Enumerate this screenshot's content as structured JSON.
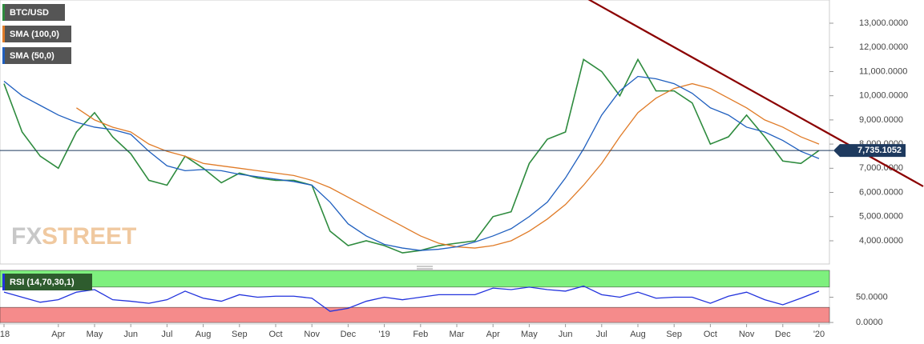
{
  "chart_data": [
    {
      "type": "line",
      "categories": [
        "'18",
        null,
        null,
        "Apr",
        null,
        "May",
        null,
        "Jun",
        null,
        "Jul",
        null,
        "Aug",
        null,
        "Sep",
        null,
        "Oct",
        null,
        "Nov",
        null,
        "Dec",
        null,
        "'19",
        null,
        "Feb",
        null,
        "Mar",
        null,
        "Apr",
        null,
        "May",
        null,
        "Jun",
        null,
        "Jul",
        null,
        "Aug",
        null,
        "Sep",
        null,
        "Oct",
        null,
        "Nov",
        null,
        "Dec",
        null,
        "'20"
      ],
      "series": [
        {
          "name": "BTC/USD",
          "color": "#2e8b3e",
          "values": [
            10500,
            8500,
            7500,
            7000,
            8500,
            9300,
            8300,
            7600,
            6500,
            6300,
            7500,
            7000,
            6400,
            6800,
            6600,
            6500,
            6500,
            6300,
            4400,
            3800,
            4000,
            3800,
            3500,
            3600,
            3800,
            3900,
            4000,
            5000,
            5200,
            7200,
            8200,
            8500,
            11500,
            11000,
            10000,
            11500,
            10200,
            10200,
            9700,
            8000,
            8300,
            9200,
            8300,
            7300,
            7200,
            7735.1052
          ]
        },
        {
          "name": "SMA (100,0)",
          "color": "#e07b27",
          "values": [
            null,
            null,
            null,
            null,
            9500,
            9000,
            8700,
            8500,
            8000,
            7700,
            7500,
            7200,
            7100,
            7000,
            6900,
            6800,
            6700,
            6500,
            6200,
            5800,
            5400,
            5000,
            4600,
            4200,
            3900,
            3750,
            3700,
            3800,
            4000,
            4400,
            4900,
            5500,
            6300,
            7200,
            8300,
            9300,
            9900,
            10300,
            10500,
            10300,
            9900,
            9500,
            9000,
            8700,
            8300,
            8000
          ]
        },
        {
          "name": "SMA (50,0)",
          "color": "#1f5fbf",
          "values": [
            10600,
            10000,
            9600,
            9200,
            8900,
            8700,
            8600,
            8400,
            7700,
            7100,
            6900,
            6950,
            6900,
            6750,
            6650,
            6550,
            6450,
            6300,
            5600,
            4700,
            4200,
            3850,
            3700,
            3600,
            3650,
            3750,
            3950,
            4200,
            4500,
            5000,
            5600,
            6600,
            7800,
            9200,
            10200,
            10800,
            10700,
            10500,
            10100,
            9500,
            9200,
            8700,
            8500,
            8150,
            7700,
            7400
          ]
        }
      ],
      "last_price": {
        "value": 7735.1052,
        "label": "7,735.1052"
      },
      "trendline": {
        "color": "#8b0000",
        "x": [
          32,
          45
        ],
        "values": [
          14100,
          8660
        ]
      },
      "ylim": [
        3040,
        13960
      ],
      "yticks": [
        {
          "value": 4000,
          "label": "4,000.0000"
        },
        {
          "value": 5000,
          "label": "5,000.0000"
        },
        {
          "value": 6000,
          "label": "6,000.0000"
        },
        {
          "value": 7000,
          "label": "7,000.0000"
        },
        {
          "value": 8000,
          "label": "8,000.0000"
        },
        {
          "value": 9000,
          "label": "9,000.0000"
        },
        {
          "value": 10000,
          "label": "10,000.0000"
        },
        {
          "value": 11000,
          "label": "11,000.0000"
        },
        {
          "value": 12000,
          "label": "12,000.0000"
        },
        {
          "value": 13000,
          "label": "13,000.0000"
        }
      ],
      "watermark": [
        "FX",
        "STREET"
      ]
    },
    {
      "type": "line",
      "series": [
        {
          "name": "RSI (14,70,30,1)",
          "color": "#2233dd",
          "values": [
            60,
            50,
            40,
            45,
            60,
            65,
            45,
            42,
            38,
            45,
            62,
            48,
            42,
            55,
            50,
            52,
            52,
            48,
            22,
            28,
            42,
            50,
            45,
            50,
            55,
            55,
            55,
            68,
            65,
            70,
            65,
            62,
            72,
            55,
            50,
            60,
            48,
            50,
            50,
            38,
            52,
            60,
            45,
            35,
            48,
            62
          ]
        }
      ],
      "overbought": 70,
      "oversold": 30,
      "ylim": [
        -3,
        103
      ],
      "yticks": [
        {
          "value": 50,
          "label": "50.0000"
        },
        {
          "value": 0,
          "label": "0.0000"
        }
      ]
    }
  ]
}
